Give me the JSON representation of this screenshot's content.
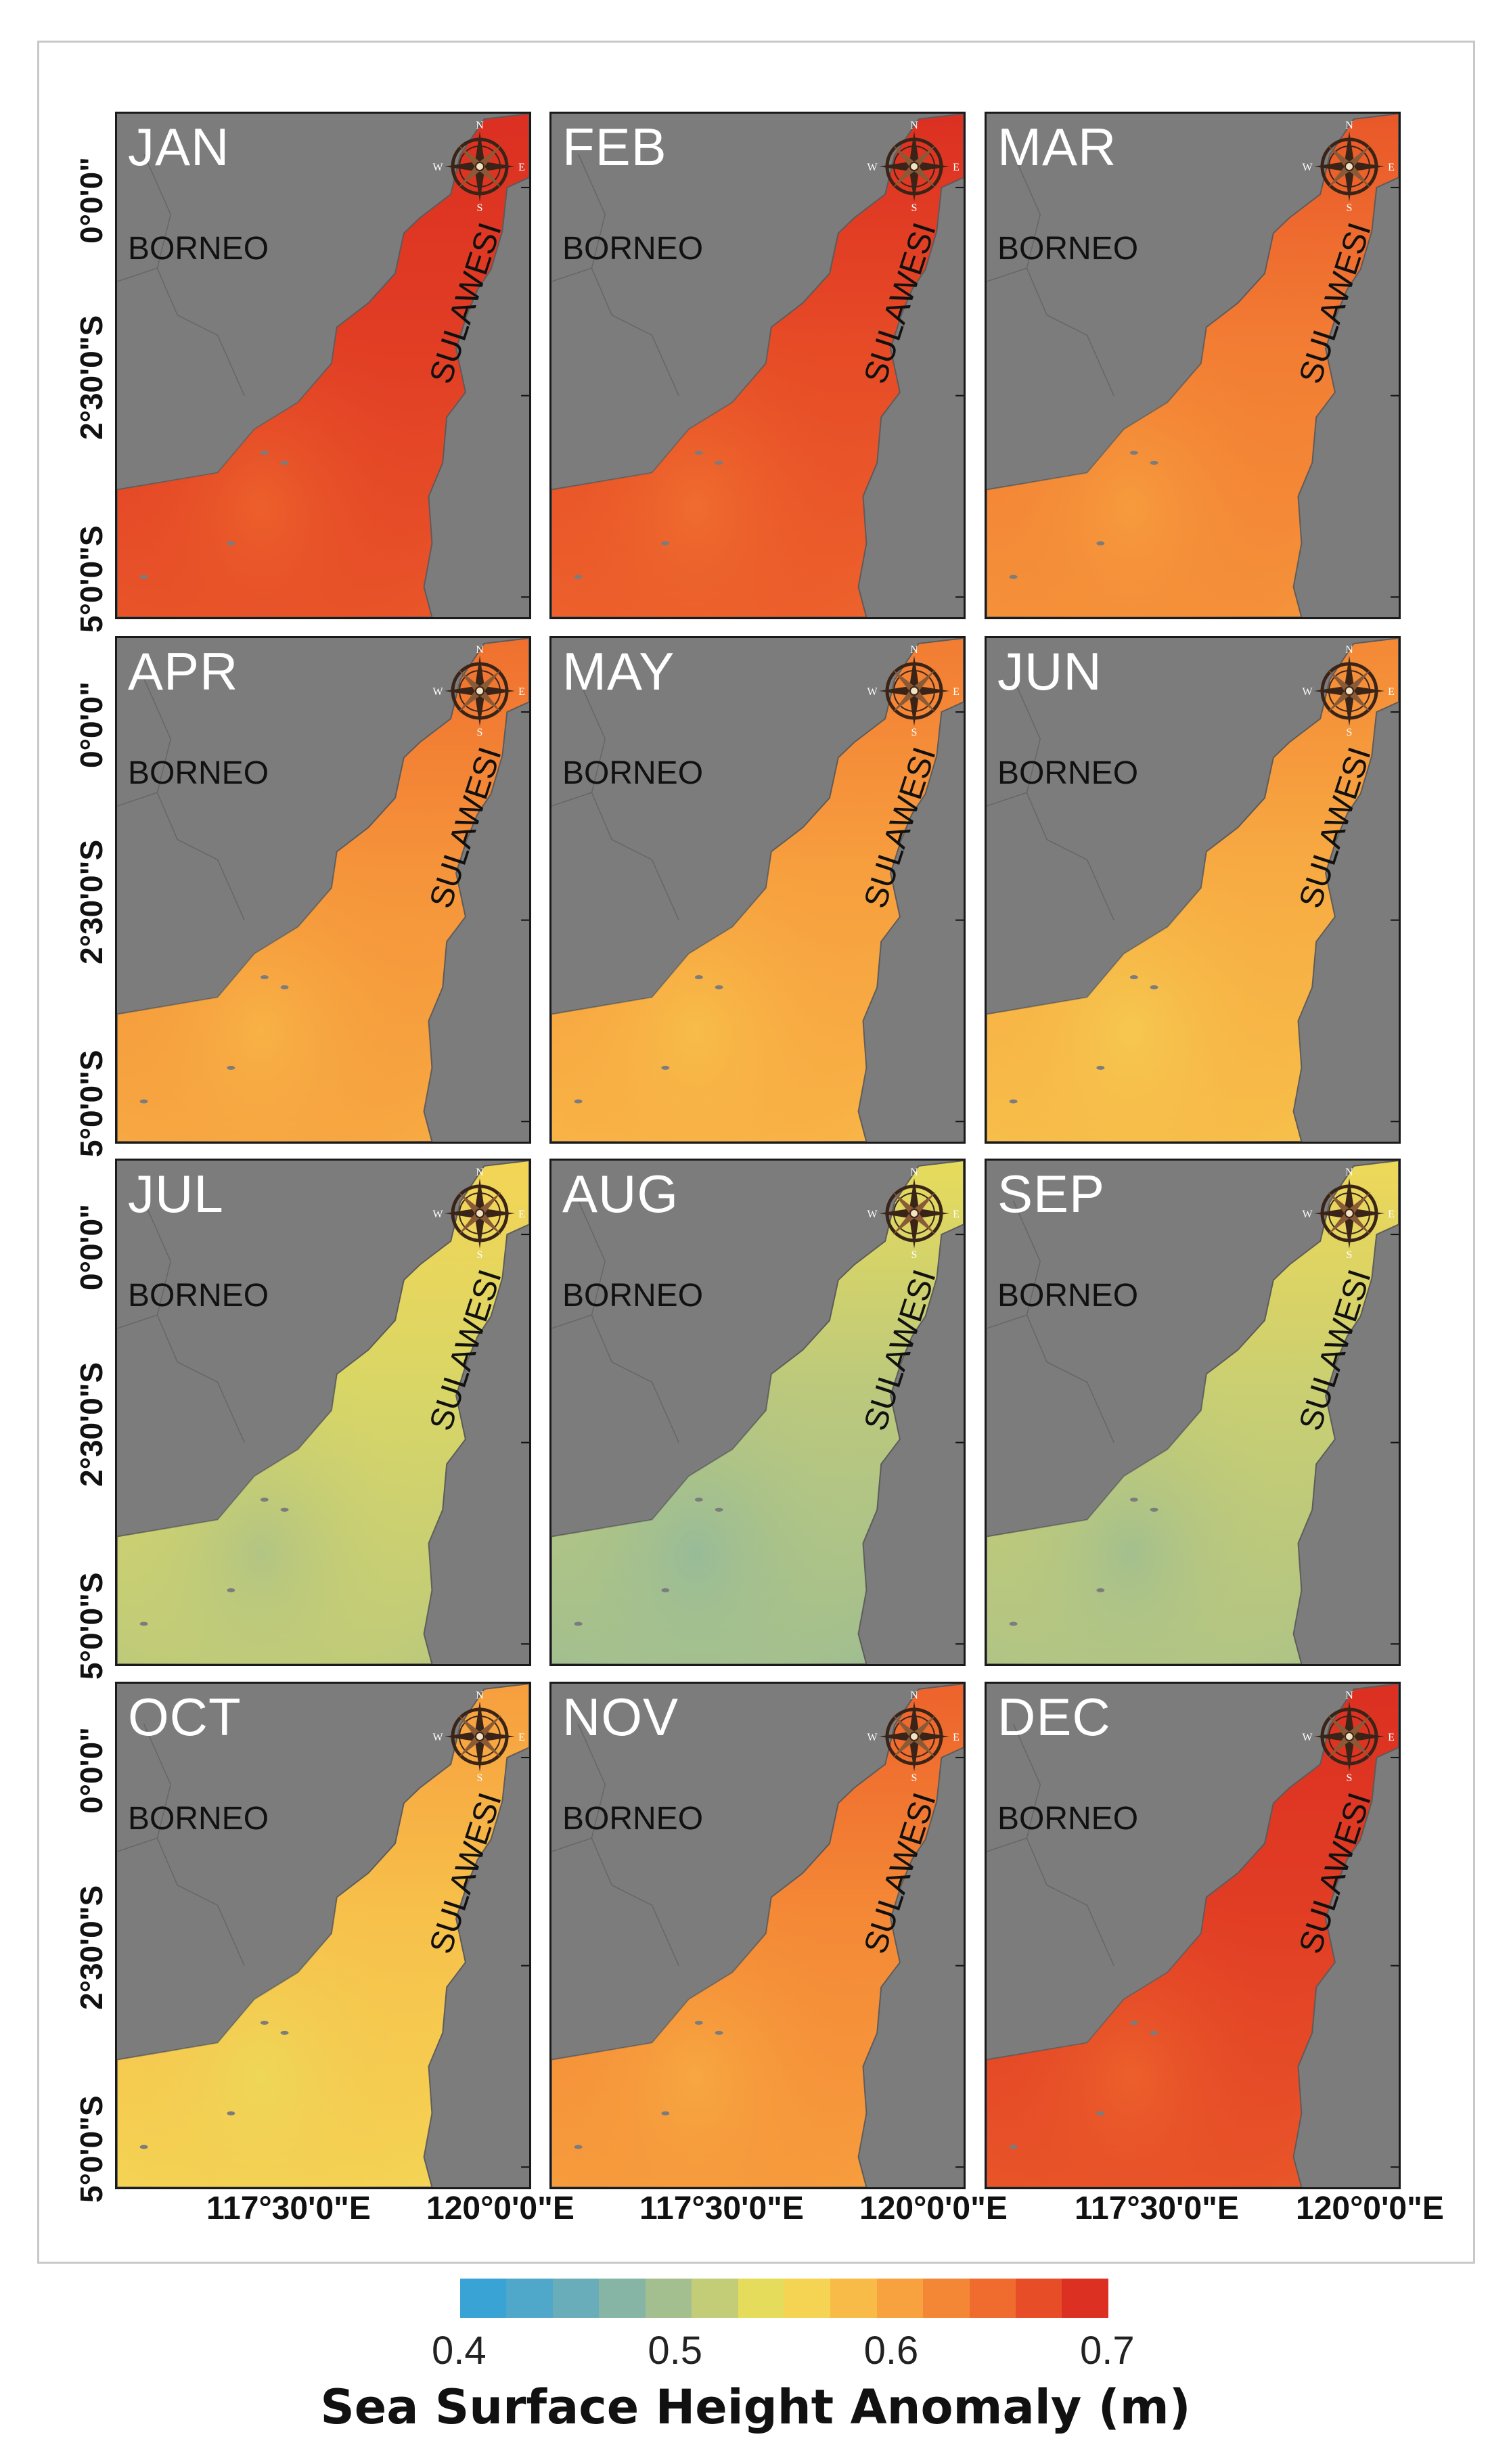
{
  "panels": [
    {
      "month": "JAN",
      "ssha": 0.69
    },
    {
      "month": "FEB",
      "ssha": 0.68
    },
    {
      "month": "MAR",
      "ssha": 0.64
    },
    {
      "month": "APR",
      "ssha": 0.62
    },
    {
      "month": "MAY",
      "ssha": 0.61
    },
    {
      "month": "JUN",
      "ssha": 0.6
    },
    {
      "month": "JUL",
      "ssha": 0.53
    },
    {
      "month": "AUG",
      "ssha": 0.51
    },
    {
      "month": "SEP",
      "ssha": 0.52
    },
    {
      "month": "OCT",
      "ssha": 0.58
    },
    {
      "month": "NOV",
      "ssha": 0.63
    },
    {
      "month": "DEC",
      "ssha": 0.69
    }
  ],
  "labels": {
    "borneo": "BORNEO",
    "sulawesi": "SULAWESI",
    "compass": {
      "n": "N",
      "s": "S",
      "w": "W",
      "e": "E"
    }
  },
  "axes": {
    "latitude": [
      "0°0'0\"",
      "2°30'0\"S",
      "5°0'0\"S"
    ],
    "longitude": [
      "117°30'0\"E",
      "120°0'0\"E"
    ]
  },
  "colorbar": {
    "title": "Sea Surface Height Anomaly (m)",
    "ticks": [
      "0.4",
      "0.5",
      "0.6",
      "0.7"
    ],
    "min": 0.4,
    "max": 0.7,
    "colors": [
      "#3aa3d6",
      "#4fa7c9",
      "#6aadba",
      "#86b5a6",
      "#a3bf8f",
      "#c3cc76",
      "#e6dc5c",
      "#f5d454",
      "#f8bb48",
      "#f7a13f",
      "#f48736",
      "#ef6b2e",
      "#e74e27",
      "#dc3022"
    ]
  },
  "colors": {
    "land": "#7c7c7c",
    "coast": "#5b5b5b",
    "rose_dark": "#3a2418"
  }
}
